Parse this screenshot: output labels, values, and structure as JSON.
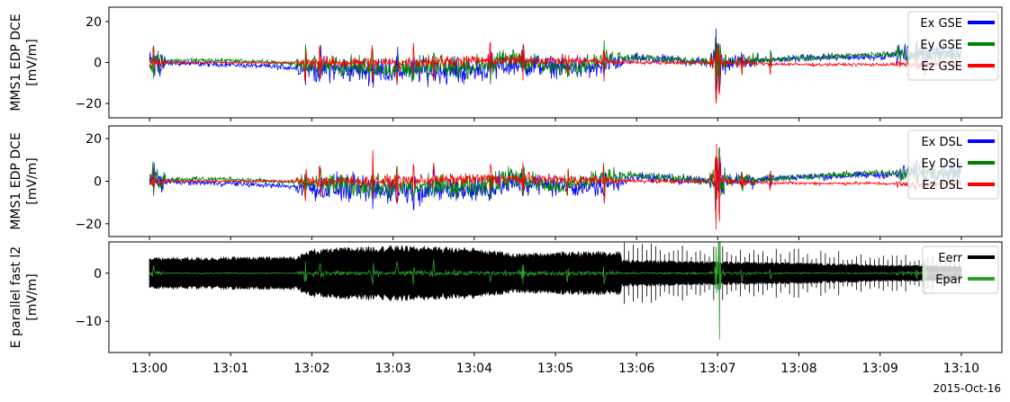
{
  "figure": {
    "date_label": "2015-Oct-16"
  },
  "chart_data": [
    {
      "type": "line",
      "title": "",
      "ylabel": [
        "MMS1 EDP DCE",
        "[mV/m]"
      ],
      "xlabel": "",
      "x_ticks": [
        "13:00",
        "13:01",
        "13:02",
        "13:03",
        "13:04",
        "13:05",
        "13:06",
        "13:07",
        "13:08",
        "13:09",
        "13:10"
      ],
      "xlim_minutes": [
        -0.5,
        10.5
      ],
      "ylim": [
        -27,
        27
      ],
      "y_ticks": [
        -20,
        0,
        20
      ],
      "legend": "top-right",
      "series": [
        {
          "name": "Ex GSE",
          "color": "#0000ff",
          "amplitude": 3.5,
          "baseline": [
            [
              0,
              0
            ],
            [
              1,
              -1
            ],
            [
              2,
              -3
            ],
            [
              3,
              -4
            ],
            [
              4,
              -4
            ],
            [
              4.5,
              -1
            ],
            [
              5.5,
              -3
            ],
            [
              6,
              2
            ],
            [
              7,
              0
            ],
            [
              8,
              2
            ],
            [
              9,
              3
            ],
            [
              9.5,
              5
            ],
            [
              10,
              5
            ]
          ]
        },
        {
          "name": "Ey GSE",
          "color": "#008000",
          "amplitude": 3.0,
          "baseline": [
            [
              0,
              1
            ],
            [
              1,
              1
            ],
            [
              2,
              -1
            ],
            [
              3,
              -3
            ],
            [
              4,
              -2
            ],
            [
              4.5,
              2
            ],
            [
              5,
              -3
            ],
            [
              5.8,
              3
            ],
            [
              7,
              0
            ],
            [
              8,
              2
            ],
            [
              9,
              4
            ],
            [
              10,
              4
            ]
          ]
        },
        {
          "name": "Ez GSE",
          "color": "#ff0000",
          "amplitude": 1.5,
          "baseline": [
            [
              0,
              0
            ],
            [
              1,
              0
            ],
            [
              2,
              0
            ],
            [
              3,
              0
            ],
            [
              4,
              1
            ],
            [
              5,
              1
            ],
            [
              6,
              0
            ],
            [
              7,
              0
            ],
            [
              8,
              -1
            ],
            [
              9,
              -1
            ],
            [
              9.5,
              -1
            ],
            [
              10,
              0
            ]
          ]
        }
      ]
    },
    {
      "type": "line",
      "title": "",
      "ylabel": [
        "MMS1 EDP DCE",
        "[mV/m]"
      ],
      "xlabel": "",
      "x_ticks": [
        "13:00",
        "13:01",
        "13:02",
        "13:03",
        "13:04",
        "13:05",
        "13:06",
        "13:07",
        "13:08",
        "13:09",
        "13:10"
      ],
      "xlim_minutes": [
        -0.5,
        10.5
      ],
      "ylim": [
        -26,
        26
      ],
      "y_ticks": [
        -20,
        0,
        20
      ],
      "legend": "top-right",
      "series": [
        {
          "name": "Ex DSL",
          "color": "#0000ff",
          "amplitude": 3.5,
          "baseline": [
            [
              0,
              0
            ],
            [
              1,
              -1
            ],
            [
              2,
              -3
            ],
            [
              3,
              -4
            ],
            [
              4,
              -4
            ],
            [
              4.5,
              -1
            ],
            [
              5.5,
              -3
            ],
            [
              6,
              2
            ],
            [
              7,
              0
            ],
            [
              8,
              2
            ],
            [
              9,
              3
            ],
            [
              9.5,
              4
            ],
            [
              10,
              5
            ]
          ]
        },
        {
          "name": "Ey DSL",
          "color": "#008000",
          "amplitude": 3.0,
          "baseline": [
            [
              0,
              1
            ],
            [
              1,
              1
            ],
            [
              2,
              -1
            ],
            [
              3,
              -3
            ],
            [
              4,
              -2
            ],
            [
              4.5,
              2
            ],
            [
              5,
              -3
            ],
            [
              5.8,
              3
            ],
            [
              7,
              0
            ],
            [
              8,
              2
            ],
            [
              9,
              4
            ],
            [
              10,
              4
            ]
          ]
        },
        {
          "name": "Ez DSL",
          "color": "#ff0000",
          "amplitude": 1.5,
          "baseline": [
            [
              0,
              0
            ],
            [
              1,
              0
            ],
            [
              2,
              0
            ],
            [
              3,
              0
            ],
            [
              4,
              1
            ],
            [
              5,
              1
            ],
            [
              6,
              0
            ],
            [
              7,
              0
            ],
            [
              8,
              -1
            ],
            [
              9,
              -1
            ],
            [
              9.5,
              -2
            ],
            [
              10,
              0
            ]
          ]
        }
      ]
    },
    {
      "type": "line",
      "title": "",
      "ylabel": [
        "E parallel fast l2",
        "[mV/m]"
      ],
      "xlabel": "",
      "x_ticks": [
        "13:00",
        "13:01",
        "13:02",
        "13:03",
        "13:04",
        "13:05",
        "13:06",
        "13:07",
        "13:08",
        "13:09",
        "13:10"
      ],
      "xlim_minutes": [
        -0.5,
        10.5
      ],
      "ylim": [
        -16.5,
        6.5
      ],
      "y_ticks": [
        -10,
        0
      ],
      "legend": "top-right",
      "series": [
        {
          "name": "Eerr",
          "color": "#000000",
          "envelope": [
            [
              0,
              2.8
            ],
            [
              1.8,
              3
            ],
            [
              2.0,
              4.3
            ],
            [
              2.6,
              4.8
            ],
            [
              3.0,
              5.0
            ],
            [
              4.0,
              4.6
            ],
            [
              4.5,
              3.5
            ],
            [
              5.0,
              3.8
            ],
            [
              5.8,
              4.0
            ],
            [
              5.82,
              2.4
            ],
            [
              7,
              2.1
            ],
            [
              8,
              1.9
            ],
            [
              9,
              1.5
            ],
            [
              10,
              1.3
            ]
          ]
        },
        {
          "name": "Epar",
          "color": "#2ca02c",
          "amplitude": 0.6,
          "baseline": [
            [
              0,
              0
            ],
            [
              10,
              0
            ]
          ]
        }
      ]
    }
  ]
}
